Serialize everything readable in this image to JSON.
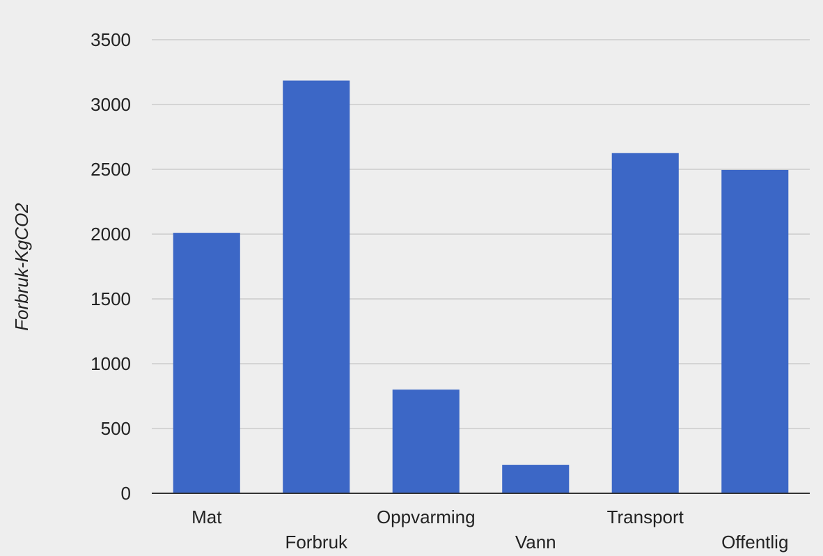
{
  "chart_data": {
    "type": "bar",
    "categories": [
      "Mat",
      "Forbruk",
      "Oppvarming",
      "Vann",
      "Transport",
      "Offentlig"
    ],
    "values": [
      2010,
      3185,
      800,
      220,
      2625,
      2495
    ],
    "title": "",
    "xlabel": "",
    "ylabel": "Forbruk-KgCO2",
    "ylim": [
      0,
      3500
    ],
    "yticks": [
      0,
      500,
      1000,
      1500,
      2000,
      2500,
      3000,
      3500
    ],
    "grid": true,
    "legend": "none",
    "colors": {
      "bar": "#3c67c6",
      "grid": "#cccccc",
      "axis": "#333333",
      "background": "#eeeeee"
    }
  }
}
